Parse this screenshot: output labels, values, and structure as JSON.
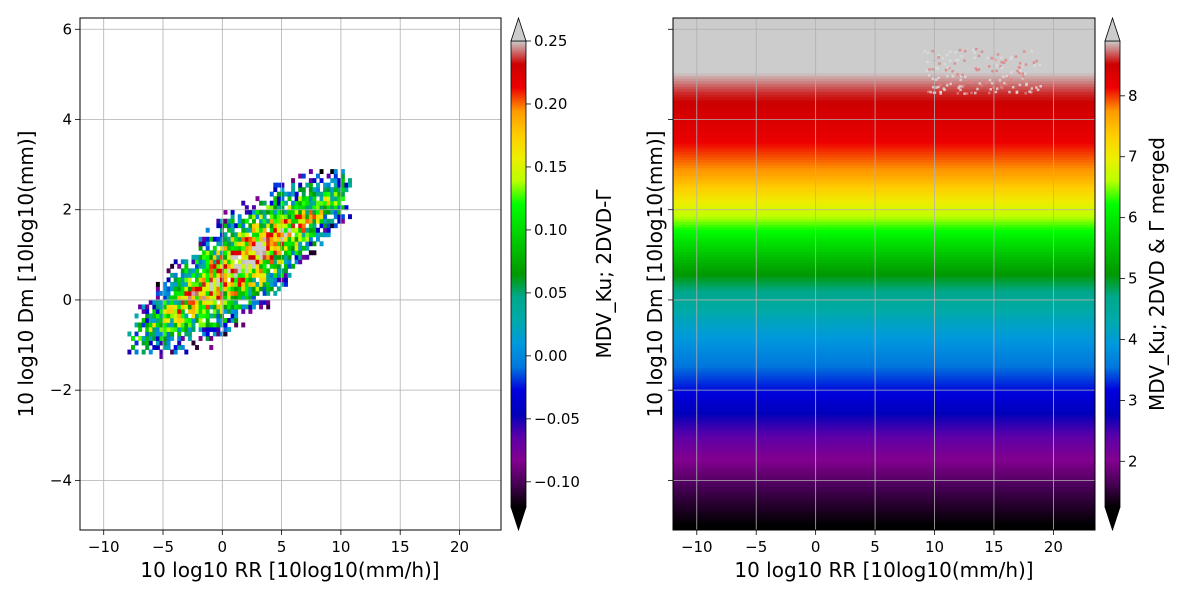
{
  "chart_data": [
    {
      "type": "heatmap",
      "xlabel": "10 log10 RR [10log10(mm/h)]",
      "ylabel": "10 log10 Dm [10log10(mm)]",
      "xlim": [
        -12,
        23.5
      ],
      "ylim": [
        -5.1,
        6.25
      ],
      "x_ticks": [
        -10,
        -5,
        0,
        5,
        10,
        15,
        20
      ],
      "y_ticks": [
        -4,
        -2,
        0,
        2,
        4,
        6
      ],
      "x_tick_labels": [
        "−10",
        "−5",
        "0",
        "5",
        "10",
        "15",
        "20"
      ],
      "y_tick_labels": [
        "−4",
        "−2",
        "0",
        "2",
        "4",
        "6"
      ],
      "grid": true,
      "colorbar": {
        "label": "MDV_Ku; 2DVD-Γ",
        "vmin": -0.12,
        "vmax": 0.25,
        "ticks": [
          -0.1,
          -0.05,
          0.0,
          0.05,
          0.1,
          0.15,
          0.2,
          0.25
        ],
        "tick_labels": [
          "−0.10",
          "−0.05",
          "0.00",
          "0.05",
          "0.10",
          "0.15",
          "0.20",
          "0.25"
        ],
        "extend": "both"
      },
      "data_region": {
        "shape": "elongated diagonal cloud",
        "corner_points": [
          [
            -7.5,
            -0.8
          ],
          [
            -5,
            -1.2
          ],
          [
            0,
            -1.1
          ],
          [
            6,
            0.4
          ],
          [
            10.5,
            1.8
          ],
          [
            8,
            3.0
          ],
          [
            6,
            3.4
          ],
          [
            2,
            2.4
          ],
          [
            -3,
            1.2
          ]
        ],
        "center_line": [
          [
            -6.5,
            -0.7
          ],
          [
            10,
            2.3
          ]
        ],
        "high_values_near": [
          [
            1,
            1.2
          ],
          [
            5,
            1.6
          ]
        ],
        "low_values_near_edges": true
      }
    },
    {
      "type": "heatmap",
      "xlabel": "10 log10 RR [10log10(mm/h)]",
      "ylabel": "10 log10 Dm [10log10(mm)]",
      "xlim": [
        -12,
        23.5
      ],
      "ylim": [
        -5.1,
        6.25
      ],
      "x_ticks": [
        -10,
        -5,
        0,
        5,
        10,
        15,
        20
      ],
      "y_ticks": [
        -4,
        -2,
        0,
        2,
        4,
        6
      ],
      "x_tick_labels": [
        "−10",
        "−5",
        "0",
        "5",
        "10",
        "15",
        "20"
      ],
      "y_tick_labels": [],
      "grid": true,
      "colorbar": {
        "label": "MDV_Ku; 2DVD & Γ merged",
        "vmin": 1.25,
        "vmax": 8.9,
        "ticks": [
          2,
          3,
          4,
          5,
          6,
          7,
          8
        ],
        "tick_labels": [
          "2",
          "3",
          "4",
          "5",
          "6",
          "7",
          "8"
        ],
        "extend": "both"
      },
      "value_vs_dm": {
        "dm": [
          -5.1,
          -4.2,
          -3.4,
          -2.6,
          -2.0,
          -1.2,
          -0.4,
          0.2,
          0.7,
          1.3,
          2.0,
          2.8,
          3.6,
          4.6,
          5.2,
          6.25
        ],
        "value": [
          1.2,
          1.6,
          2.1,
          2.7,
          3.2,
          3.7,
          4.2,
          4.7,
          5.2,
          5.9,
          6.8,
          7.7,
          8.2,
          8.6,
          9.0,
          9.3
        ]
      }
    }
  ]
}
